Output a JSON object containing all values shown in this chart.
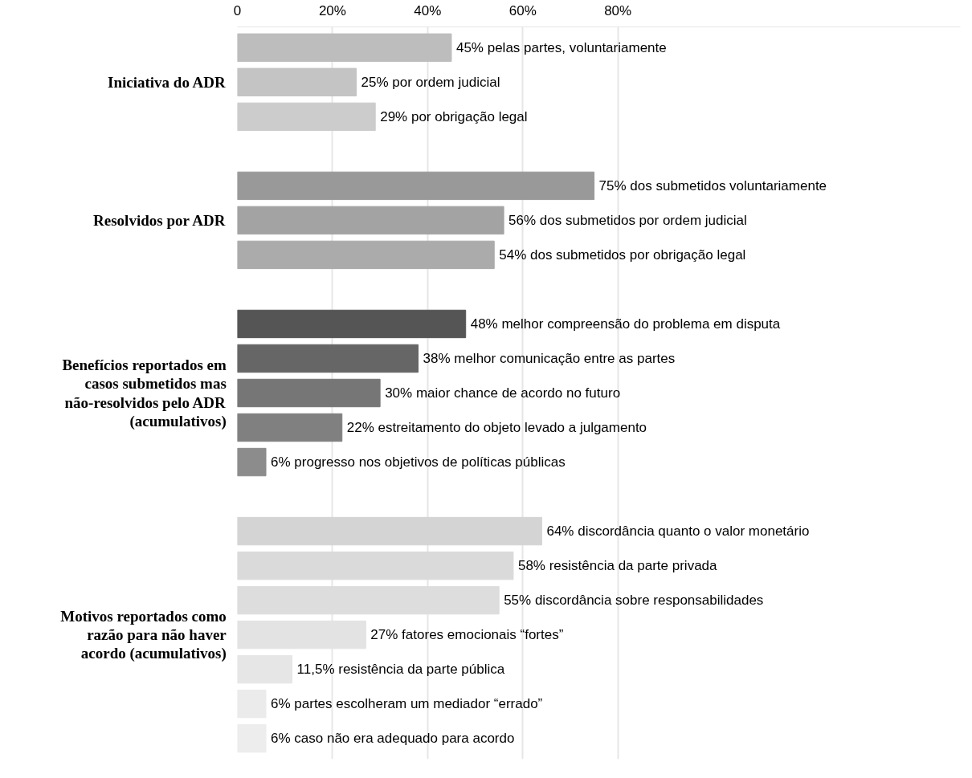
{
  "chart_data": {
    "type": "bar",
    "orientation": "horizontal",
    "categories": [
      null,
      null,
      null,
      null,
      null,
      null,
      null,
      null,
      null,
      null,
      null,
      null,
      null,
      null,
      null,
      null,
      null,
      null,
      null,
      null,
      null
    ],
    "series": [
      {
        "name": "Iniciativa do ADR",
        "colors": [
          "#bdbdbd",
          "#c4c4c4",
          "#cccccc",
          null,
          null,
          null,
          null,
          null,
          null,
          null,
          null,
          null,
          null,
          null,
          null,
          null,
          null,
          null,
          null,
          null,
          null
        ],
        "values": [
          45,
          25,
          29,
          null,
          null,
          null,
          null,
          null,
          null,
          null,
          null,
          null,
          null,
          null,
          null,
          null,
          null,
          null,
          null,
          null,
          null
        ],
        "value_labels": [
          "45% pelas partes, voluntariamente",
          "25% por ordem judicial",
          "29% por obrigação legal",
          null,
          null,
          null,
          null,
          null,
          null,
          null,
          null,
          null,
          null,
          null,
          null,
          null,
          null,
          null,
          null,
          null,
          null
        ]
      },
      {
        "name": "Resolvidos por ADR",
        "colors": [
          null,
          null,
          null,
          null,
          "#999999",
          "#a3a3a3",
          "#ababab",
          null,
          null,
          null,
          null,
          null,
          null,
          null,
          null,
          null,
          null,
          null,
          null,
          null,
          null
        ],
        "values": [
          null,
          null,
          null,
          null,
          75,
          56,
          54,
          null,
          null,
          null,
          null,
          null,
          null,
          null,
          null,
          null,
          null,
          null,
          null,
          null,
          null
        ],
        "value_labels": [
          null,
          null,
          null,
          null,
          "75% dos submetidos voluntariamente",
          "56% dos submetidos por ordem judicial",
          "54% dos submetidos por obrigação legal",
          null,
          null,
          null,
          null,
          null,
          null,
          null,
          null,
          null,
          null,
          null,
          null,
          null,
          null
        ]
      },
      {
        "name": "Benefícios reportados em casos submetidos mas não-resolvidos pelo ADR (acumulativos)",
        "colors": [
          null,
          null,
          null,
          null,
          null,
          null,
          null,
          null,
          "#555555",
          "#666666",
          "#767676",
          "#808080",
          "#8c8c8c",
          null,
          null,
          null,
          null,
          null,
          null,
          null,
          null
        ],
        "values": [
          null,
          null,
          null,
          null,
          null,
          null,
          null,
          null,
          48,
          38,
          30,
          22,
          6,
          null,
          null,
          null,
          null,
          null,
          null,
          null,
          null
        ],
        "value_labels": [
          null,
          null,
          null,
          null,
          null,
          null,
          null,
          null,
          "48% melhor compreensão do problema em disputa",
          "38% melhor comunicação entre as partes",
          "30% maior chance de acordo no futuro",
          "22% estreitamento do objeto levado a julgamento",
          "6% progresso nos objetivos de políticas públicas",
          null,
          null,
          null,
          null,
          null,
          null,
          null,
          null
        ]
      },
      {
        "name": "Motivos reportados como razão para não haver acordo (acumulativos)",
        "colors": [
          null,
          null,
          null,
          null,
          null,
          null,
          null,
          null,
          null,
          null,
          null,
          null,
          null,
          null,
          "#d4d4d4",
          "#dadada",
          "#dddddd",
          "#e3e3e3",
          "#e6e6e6",
          "#ebebeb",
          "#ededed"
        ],
        "values": [
          null,
          null,
          null,
          null,
          null,
          null,
          null,
          null,
          null,
          null,
          null,
          null,
          null,
          null,
          64,
          58,
          55,
          27,
          11.5,
          6,
          6
        ],
        "value_labels": [
          null,
          null,
          null,
          null,
          null,
          null,
          null,
          null,
          null,
          null,
          null,
          null,
          null,
          null,
          "64% discordância quanto o valor monetário",
          "58% resistência da parte privada",
          "55% discordância sobre responsabilidades",
          "27% fatores emocionais “fortes”",
          "11,5% resistência da parte pública",
          "6% partes escolheram um mediador “errado”",
          "6% caso não era adequado para acordo"
        ]
      }
    ],
    "xlim": [
      0,
      152
    ],
    "xticks": [
      0,
      {
        "value": 20,
        "label": "20%"
      },
      {
        "value": 40,
        "label": "40%"
      },
      {
        "value": 60,
        "label": "60%"
      },
      {
        "value": 80,
        "label": "80%"
      }
    ],
    "grid": "x",
    "tick_labels": "x"
  }
}
